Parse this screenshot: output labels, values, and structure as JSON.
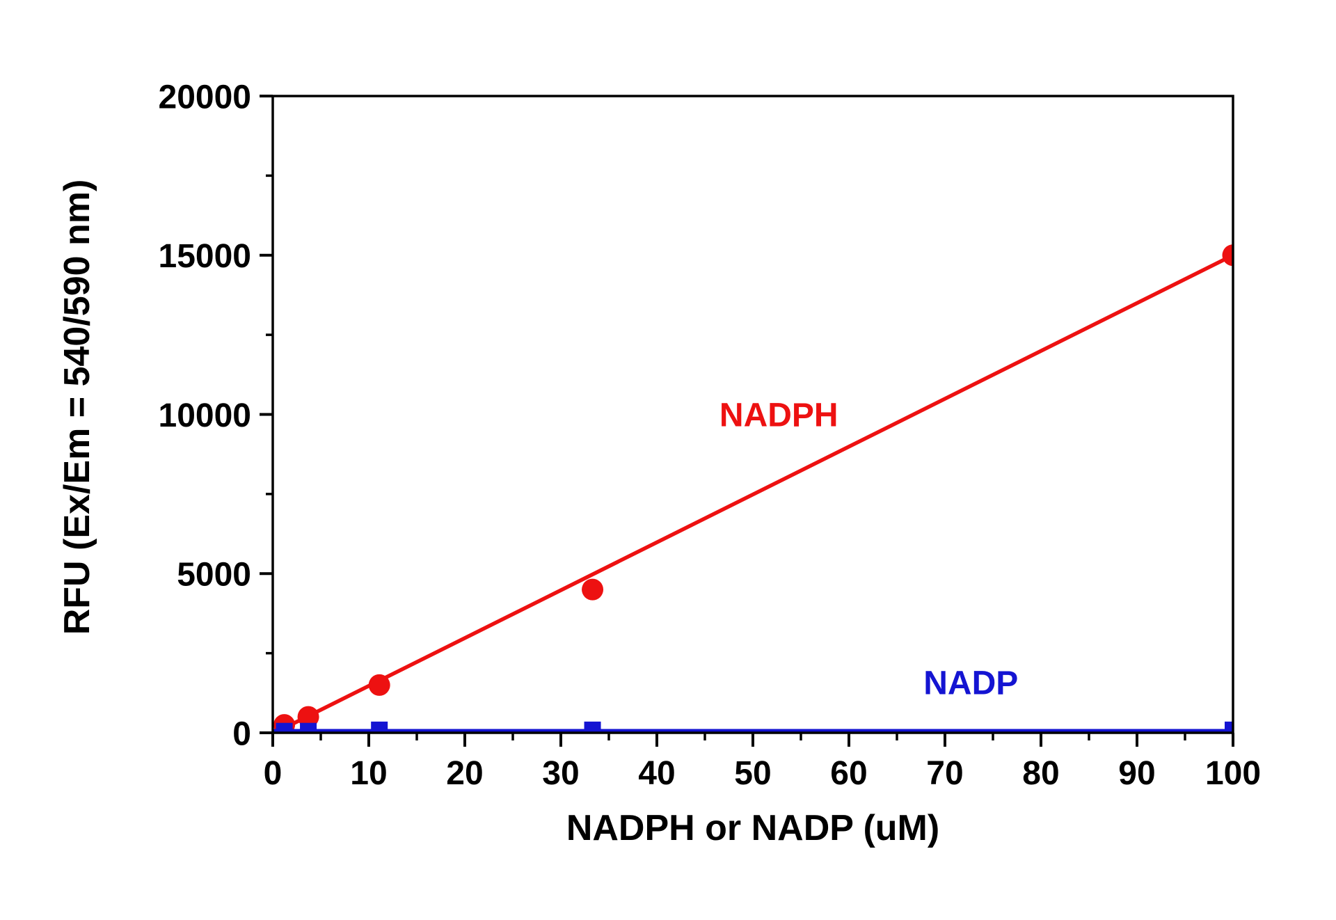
{
  "chart_data": {
    "type": "scatter",
    "title": "",
    "xlabel": "NADPH or NADP (uM)",
    "ylabel": "RFU (Ex/Em = 540/590 nm)",
    "xlim": [
      0,
      100
    ],
    "ylim": [
      0,
      20000
    ],
    "x_major_tick_step": 10,
    "x_minor_tick_step": 5,
    "y_major_tick_step": 5000,
    "y_minor_tick_step": 2500,
    "x_tick_labels": [
      "0",
      "10",
      "20",
      "30",
      "40",
      "50",
      "60",
      "70",
      "80",
      "90",
      "100"
    ],
    "y_tick_labels": [
      "0",
      "5000",
      "10000",
      "15000",
      "20000"
    ],
    "grid": false,
    "legend_position": "inline-annotations",
    "axis_color": "#000000",
    "background_color": "#ffffff",
    "series": [
      {
        "name": "NADPH",
        "marker": "circle",
        "color": "#ed1111",
        "x": [
          1.2,
          3.7,
          11.1,
          33.3,
          100
        ],
        "values": [
          250,
          500,
          1500,
          4500,
          15000
        ],
        "fit_line": {
          "x": [
            1.2,
            100
          ],
          "y": [
            150,
            15000
          ]
        },
        "label_annotation": {
          "text": "NADPH",
          "x": 52.7,
          "y": 10000
        }
      },
      {
        "name": "NADP",
        "marker": "square",
        "color": "#1414d2",
        "x": [
          1.2,
          3.7,
          11.1,
          33.3,
          100
        ],
        "values": [
          50,
          50,
          90,
          90,
          90
        ],
        "fit_line": {
          "x": [
            0,
            100
          ],
          "y": [
            60,
            60
          ]
        },
        "label_annotation": {
          "text": "NADP",
          "x": 72.7,
          "y": 1580
        }
      }
    ]
  }
}
